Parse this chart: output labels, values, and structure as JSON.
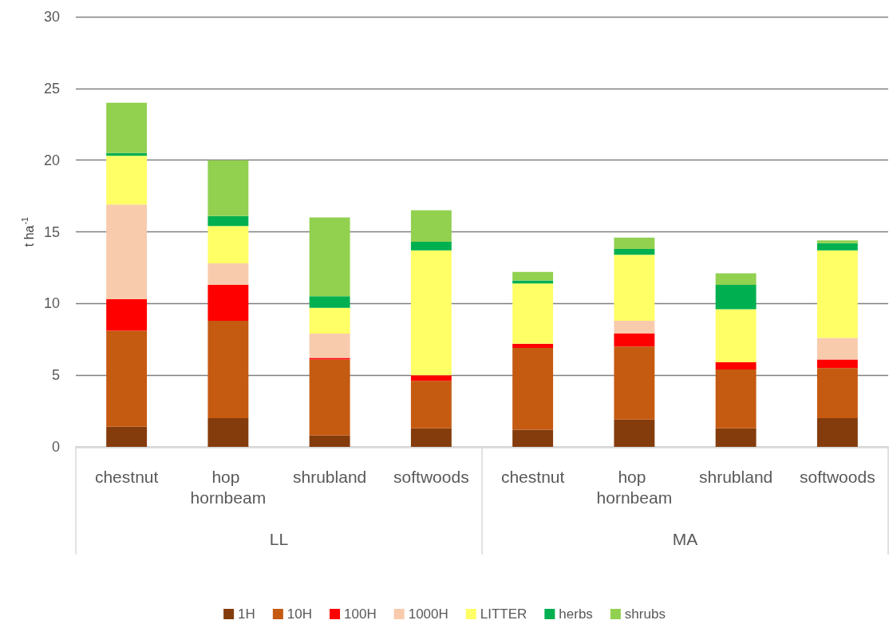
{
  "chart_data": {
    "type": "bar",
    "stacked": true,
    "ylabel": "t ha$^{-1}$",
    "categories": [
      "chestnut",
      "hop hornbeam",
      "shrubland",
      "softwoods",
      "chestnut",
      "hop hornbeam",
      "shrubland",
      "softwoods"
    ],
    "annotations": [
      "LL",
      "MA"
    ],
    "series": [
      {
        "name": "1H",
        "color": "#843c0c",
        "values": [
          1.4,
          2.0,
          0.8,
          1.3,
          1.2,
          1.9,
          1.3,
          2.0
        ]
      },
      {
        "name": "10H",
        "color": "#c55a11",
        "values": [
          6.7,
          6.8,
          5.3,
          3.3,
          5.7,
          5.1,
          4.1,
          3.5
        ]
      },
      {
        "name": "100H",
        "color": "#ff0000",
        "values": [
          2.2,
          2.5,
          0.1,
          0.4,
          0.3,
          0.9,
          0.5,
          0.6
        ]
      },
      {
        "name": "1000H",
        "color": "#f8cbad",
        "values": [
          6.6,
          1.5,
          1.7,
          0,
          0,
          0.9,
          0,
          1.5
        ]
      },
      {
        "name": "LITTER",
        "color": "#ffff66",
        "values": [
          3.4,
          2.6,
          1.8,
          8.7,
          4.2,
          4.6,
          3.7,
          6.1
        ]
      },
      {
        "name": "herbs",
        "color": "#00b050",
        "values": [
          0.2,
          0.7,
          0.8,
          0.6,
          0.2,
          0.4,
          1.7,
          0.5
        ]
      },
      {
        "name": "shrubs",
        "color": "#92d050",
        "values": [
          3.5,
          3.9,
          5.5,
          2.2,
          0.6,
          0.8,
          0.8,
          0.2
        ]
      }
    ],
    "ylim": [
      0,
      30
    ],
    "yticks": [
      0,
      5,
      10,
      15,
      20,
      25,
      30
    ],
    "grid": "y",
    "legend": "bottom"
  }
}
